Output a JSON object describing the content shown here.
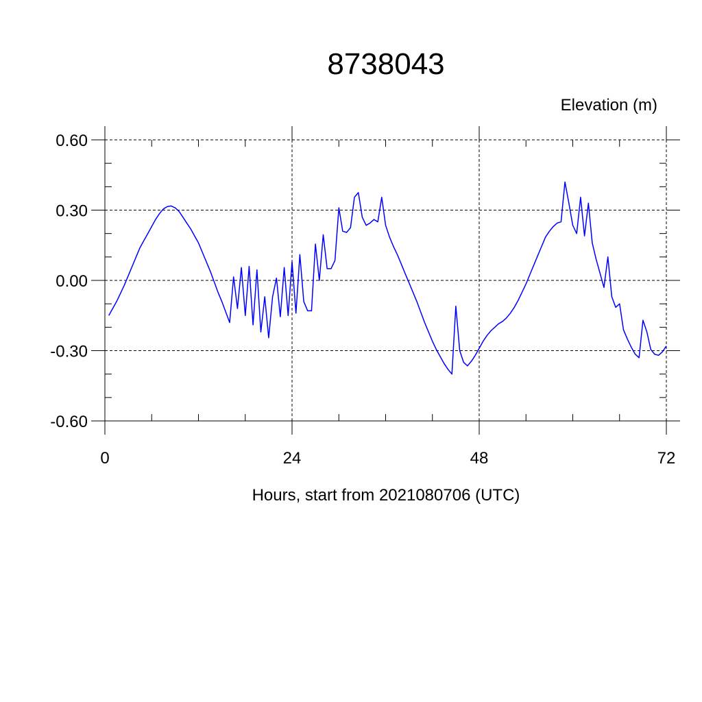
{
  "chart_data": {
    "type": "line",
    "title": "8738043",
    "ylabel": "Elevation (m)",
    "xlabel": "Hours, start from 2021080706 (UTC)",
    "xlim": [
      0,
      72
    ],
    "ylim": [
      -0.6,
      0.6
    ],
    "x_ticks": [
      0,
      24,
      48,
      72
    ],
    "x_tick_labels": [
      "0",
      "24",
      "48",
      "72"
    ],
    "y_ticks": [
      0.6,
      0.3,
      0.0,
      -0.3,
      -0.6
    ],
    "y_tick_labels": [
      "0.60",
      "0.30",
      "0.00",
      "-0.30",
      "-0.60"
    ],
    "grid": true,
    "series_color": "#0000ff",
    "series": [
      {
        "x": [
          0.5,
          1,
          1.5,
          2,
          2.5,
          3,
          3.5,
          4,
          4.5,
          5,
          5.5,
          6,
          6.5,
          7,
          7.5,
          8,
          8.5,
          9,
          9.5,
          10,
          10.5,
          11,
          11.5,
          12,
          12.5,
          13,
          13.5,
          14,
          14.5,
          15,
          15.5,
          16,
          16.5,
          17,
          17.5,
          18,
          18.5,
          19,
          19.5,
          20,
          20.5,
          21,
          21.5,
          22,
          22.5,
          23,
          23.5,
          24,
          24.5,
          25,
          25.5,
          26,
          26.5,
          27,
          27.5,
          28,
          28.5,
          29,
          29.5,
          30,
          30.5,
          31,
          31.5,
          32,
          32.5,
          33,
          33.5,
          34,
          34.5,
          35,
          35.5,
          36,
          36.5,
          37,
          37.5,
          38,
          38.5,
          39,
          39.5,
          40,
          40.5,
          41,
          41.5,
          42,
          42.5,
          43,
          43.5,
          44,
          44.5,
          45,
          45.5,
          46,
          46.5,
          47,
          47.5,
          48,
          48.5,
          49,
          49.5,
          50,
          50.5,
          51,
          51.5,
          52,
          52.5,
          53,
          53.5,
          54,
          54.5,
          55,
          55.5,
          56,
          56.5,
          57,
          57.5,
          58,
          58.5,
          59,
          59.5,
          60,
          60.5,
          61,
          61.5,
          62,
          62.5,
          63,
          63.5,
          64,
          64.5,
          65,
          65.5,
          66,
          66.5,
          67,
          67.5,
          68,
          68.5,
          69,
          69.5,
          70,
          70.5,
          71,
          71.5,
          72
        ],
        "values": [
          -0.15,
          -0.12,
          -0.09,
          -0.055,
          -0.02,
          0.02,
          0.06,
          0.1,
          0.14,
          0.17,
          0.2,
          0.23,
          0.26,
          0.285,
          0.305,
          0.315,
          0.318,
          0.31,
          0.295,
          0.27,
          0.245,
          0.22,
          0.19,
          0.16,
          0.12,
          0.08,
          0.04,
          -0.005,
          -0.05,
          -0.09,
          -0.135,
          -0.18,
          0.015,
          -0.12,
          0.055,
          -0.15,
          0.06,
          -0.19,
          0.045,
          -0.22,
          -0.07,
          -0.245,
          -0.07,
          0.01,
          -0.155,
          0.055,
          -0.15,
          0.08,
          -0.14,
          0.11,
          -0.09,
          -0.13,
          -0.13,
          0.155,
          0.0,
          0.195,
          0.05,
          0.05,
          0.085,
          0.31,
          0.21,
          0.205,
          0.225,
          0.355,
          0.375,
          0.27,
          0.235,
          0.245,
          0.26,
          0.25,
          0.355,
          0.235,
          0.185,
          0.145,
          0.11,
          0.07,
          0.03,
          -0.01,
          -0.05,
          -0.09,
          -0.135,
          -0.18,
          -0.22,
          -0.26,
          -0.295,
          -0.325,
          -0.355,
          -0.38,
          -0.4,
          -0.11,
          -0.3,
          -0.35,
          -0.365,
          -0.345,
          -0.32,
          -0.29,
          -0.26,
          -0.235,
          -0.215,
          -0.2,
          -0.185,
          -0.175,
          -0.16,
          -0.14,
          -0.115,
          -0.085,
          -0.05,
          -0.015,
          0.025,
          0.065,
          0.105,
          0.145,
          0.185,
          0.21,
          0.23,
          0.245,
          0.25,
          0.42,
          0.33,
          0.235,
          0.2,
          0.355,
          0.19,
          0.33,
          0.16,
          0.09,
          0.03,
          -0.03,
          0.1,
          -0.07,
          -0.115,
          -0.1,
          -0.21,
          -0.25,
          -0.285,
          -0.315,
          -0.33,
          -0.17,
          -0.22,
          -0.295,
          -0.315,
          -0.32,
          -0.305,
          -0.28
        ]
      }
    ]
  }
}
